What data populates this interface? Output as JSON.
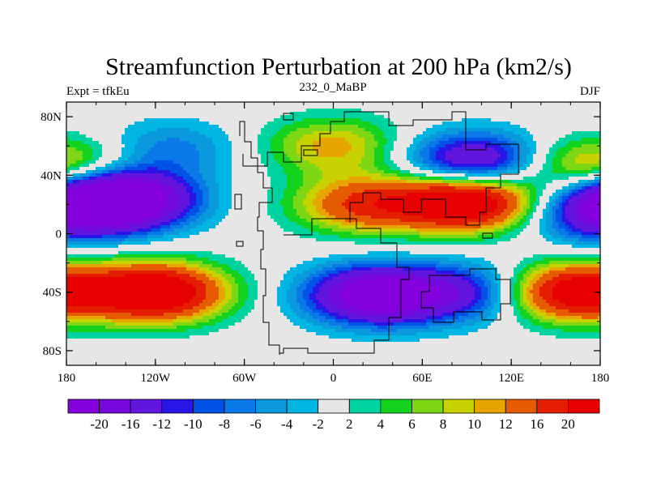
{
  "chart_data": {
    "type": "heatmap",
    "title": "Streamfunction Perturbation at 200 hPa (km2/s)",
    "subtitle_left": "Expt = tfkEu",
    "subtitle_center": "232_0_MaBP",
    "subtitle_right": "DJF",
    "x_ticks": [
      "180",
      "120W",
      "60W",
      "0",
      "60E",
      "120E",
      "180"
    ],
    "x_tick_values": [
      -180,
      -120,
      -60,
      0,
      60,
      120,
      180
    ],
    "y_ticks": [
      "80N",
      "40N",
      "0",
      "40S",
      "80S"
    ],
    "y_tick_values": [
      80,
      40,
      0,
      -40,
      -80
    ],
    "xlim": [
      -180,
      180
    ],
    "ylim": [
      -90,
      90
    ],
    "levels": [
      "-20",
      "-16",
      "-12",
      "-10",
      "-8",
      "-6",
      "-4",
      "-2",
      "2",
      "4",
      "6",
      "8",
      "10",
      "12",
      "16",
      "20"
    ],
    "level_values": [
      -20,
      -16,
      -12,
      -10,
      -8,
      -6,
      -4,
      -2,
      2,
      4,
      6,
      8,
      10,
      12,
      16,
      20
    ],
    "colors": [
      "#8400dd",
      "#7408dd",
      "#6216dd",
      "#2a14e6",
      "#0052e6",
      "#0a78e6",
      "#0a99dd",
      "#00b5e2",
      "#e6e6e6",
      "#00d2a0",
      "#14d21e",
      "#7dd714",
      "#c8d200",
      "#e6a500",
      "#e65a00",
      "#e61e00",
      "#e60000"
    ],
    "centers": [
      {
        "lon": -140,
        "lat": 23,
        "value": -24
      },
      {
        "lon": -168,
        "lat": 25,
        "value": -14
      },
      {
        "lon": -120,
        "lat": -40,
        "value": 28
      },
      {
        "lon": 90,
        "lat": 22,
        "value": 28
      },
      {
        "lon": 20,
        "lat": 20,
        "value": 16
      },
      {
        "lon": 30,
        "lat": -42,
        "value": -26
      },
      {
        "lon": 95,
        "lat": -40,
        "value": -12
      },
      {
        "lon": -110,
        "lat": 58,
        "value": -7
      },
      {
        "lon": 0,
        "lat": 60,
        "value": 11
      },
      {
        "lon": 95,
        "lat": 49,
        "value": -19
      },
      {
        "lon": 160,
        "lat": -40,
        "value": 25
      },
      {
        "lon": 170,
        "lat": 45,
        "value": 8
      },
      {
        "lon": 175,
        "lat": 10,
        "value": -9
      },
      {
        "lon": -180,
        "lat": 45,
        "value": 7
      }
    ]
  }
}
